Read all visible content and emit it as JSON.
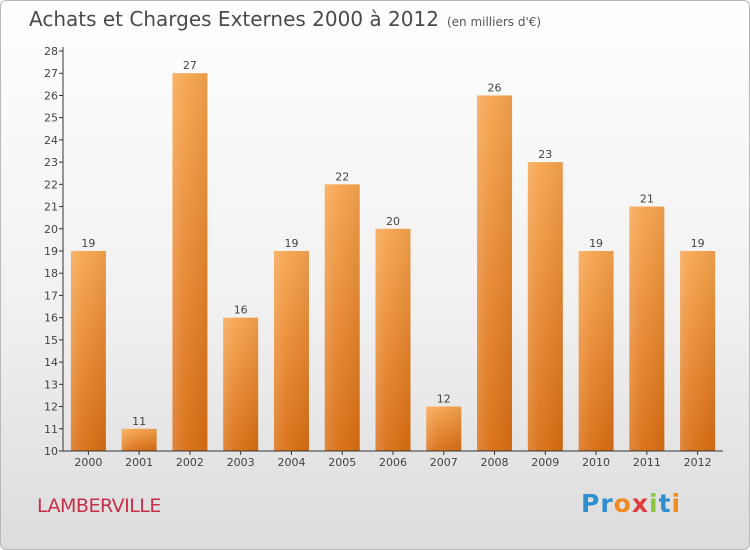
{
  "header": {
    "title": "Achats et Charges Externes 2000 à 2012",
    "unit": "(en milliers d'€)"
  },
  "footer": {
    "city": "LAMBERVILLE",
    "logo": [
      {
        "ch": "P",
        "color": "#2f8fd0"
      },
      {
        "ch": "r",
        "color": "#2f8fd0"
      },
      {
        "ch": "o",
        "color": "#f08a1e"
      },
      {
        "ch": "x",
        "color": "#e23b3b"
      },
      {
        "ch": "i",
        "color": "#8cc63f"
      },
      {
        "ch": "t",
        "color": "#2f8fd0"
      },
      {
        "ch": "i",
        "color": "#f08a1e"
      }
    ]
  },
  "colors": {
    "bar_light": "#f7a44e",
    "bar_dark": "#d96d12",
    "axis": "#333333",
    "grid": "#cfcfcf"
  },
  "chart_data": {
    "type": "bar",
    "categories": [
      "2000",
      "2001",
      "2002",
      "2003",
      "2004",
      "2005",
      "2006",
      "2007",
      "2008",
      "2009",
      "2010",
      "2011",
      "2012"
    ],
    "values": [
      19,
      11,
      27,
      16,
      19,
      22,
      20,
      12,
      26,
      23,
      19,
      21,
      19
    ],
    "data_labels": [
      "19",
      "11",
      "27",
      "16",
      "19",
      "22",
      "20",
      "12",
      "26",
      "23",
      "19",
      "21",
      "19"
    ],
    "title": "Achats et Charges Externes 2000 à 2012",
    "ylim": [
      10,
      28
    ],
    "yticks": [
      10,
      11,
      12,
      13,
      14,
      15,
      16,
      17,
      18,
      19,
      20,
      21,
      22,
      23,
      24,
      25,
      26,
      27,
      28
    ],
    "grid": false,
    "legend": "none"
  }
}
